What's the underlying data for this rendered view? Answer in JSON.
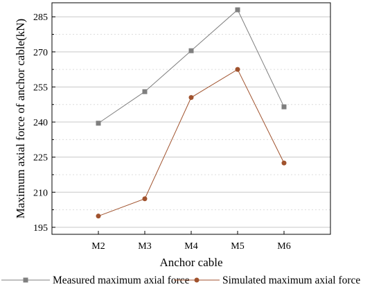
{
  "chart_data": {
    "type": "line",
    "categories": [
      "M2",
      "M3",
      "M4",
      "M5",
      "M6"
    ],
    "xlabel": "Anchor cable",
    "ylabel": "Maximum axial force of anchor cable(kN)",
    "ylim": [
      192,
      291
    ],
    "yticks": [
      195,
      210,
      225,
      240,
      255,
      270,
      285
    ],
    "grid": true,
    "legend_position": "bottom",
    "series": [
      {
        "name": "Measured maximum axial force",
        "values": [
          239.5,
          253.0,
          270.5,
          288.0,
          246.5
        ],
        "color": "#7f7f7f",
        "marker": "square"
      },
      {
        "name": "Simulated maximum axial force",
        "values": [
          199.8,
          207.2,
          250.5,
          262.5,
          222.5
        ],
        "color": "#a0522d",
        "marker": "circle"
      }
    ]
  }
}
